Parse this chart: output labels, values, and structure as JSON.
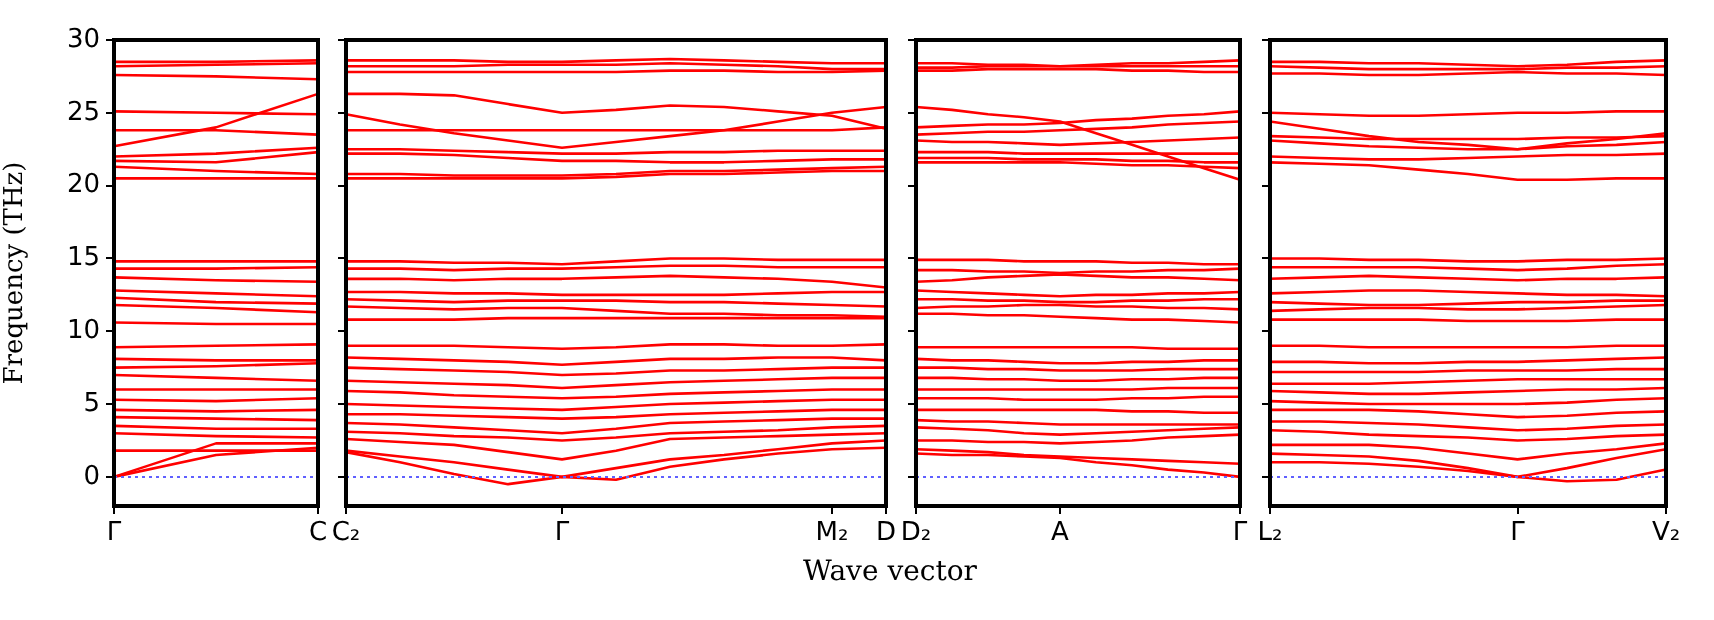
{
  "chart_data": [
    {
      "type": "line",
      "ylabel": "Frequency (THz)",
      "categories": [
        "Γ",
        null,
        "C"
      ],
      "ylim": [
        -2,
        30
      ],
      "yticks": [
        0,
        5,
        10,
        15,
        20,
        25,
        30
      ],
      "grid": false,
      "legend": false,
      "marker": "none",
      "line_style": "solid",
      "ref_lines": [
        {
          "axis": "y",
          "value": 0,
          "color": "#6060ff",
          "line_style": "dotted"
        }
      ],
      "series": [
        {
          "color": "#ff0000",
          "values": [
            28.5,
            28.5,
            28.6
          ]
        },
        {
          "color": "#ff0000",
          "values": [
            28.2,
            28.3,
            28.4
          ]
        },
        {
          "color": "#ff0000",
          "values": [
            27.6,
            27.5,
            27.3
          ]
        },
        {
          "color": "#ff0000",
          "values": [
            25.1,
            25.0,
            24.9
          ]
        },
        {
          "color": "#ff0000",
          "values": [
            22.7,
            24.0,
            26.3
          ]
        },
        {
          "color": "#ff0000",
          "values": [
            23.8,
            23.8,
            23.5
          ]
        },
        {
          "color": "#ff0000",
          "values": [
            22.0,
            22.2,
            22.6
          ]
        },
        {
          "color": "#ff0000",
          "values": [
            21.7,
            21.6,
            22.3
          ]
        },
        {
          "color": "#ff0000",
          "values": [
            21.3,
            21.0,
            20.8
          ]
        },
        {
          "color": "#ff0000",
          "values": [
            20.5,
            20.5,
            20.5
          ]
        },
        {
          "color": "#ff0000",
          "values": [
            14.8,
            14.8,
            14.8
          ]
        },
        {
          "color": "#ff0000",
          "values": [
            14.3,
            14.3,
            14.4
          ]
        },
        {
          "color": "#ff0000",
          "values": [
            13.7,
            13.5,
            13.4
          ]
        },
        {
          "color": "#ff0000",
          "values": [
            12.8,
            12.6,
            12.4
          ]
        },
        {
          "color": "#ff0000",
          "values": [
            12.3,
            12.0,
            11.9
          ]
        },
        {
          "color": "#ff0000",
          "values": [
            11.8,
            11.6,
            11.3
          ]
        },
        {
          "color": "#ff0000",
          "values": [
            10.6,
            10.5,
            10.5
          ]
        },
        {
          "color": "#ff0000",
          "values": [
            8.9,
            9.0,
            9.1
          ]
        },
        {
          "color": "#ff0000",
          "values": [
            8.1,
            8.0,
            8.0
          ]
        },
        {
          "color": "#ff0000",
          "values": [
            7.5,
            7.6,
            7.8
          ]
        },
        {
          "color": "#ff0000",
          "values": [
            7.0,
            6.8,
            6.6
          ]
        },
        {
          "color": "#ff0000",
          "values": [
            6.0,
            6.0,
            6.0
          ]
        },
        {
          "color": "#ff0000",
          "values": [
            5.3,
            5.2,
            5.4
          ]
        },
        {
          "color": "#ff0000",
          "values": [
            4.6,
            4.5,
            4.6
          ]
        },
        {
          "color": "#ff0000",
          "values": [
            4.1,
            4.0,
            3.9
          ]
        },
        {
          "color": "#ff0000",
          "values": [
            3.5,
            3.3,
            3.3
          ]
        },
        {
          "color": "#ff0000",
          "values": [
            3.0,
            2.8,
            2.7
          ]
        },
        {
          "color": "#ff0000",
          "values": [
            1.8,
            1.8,
            1.8
          ]
        },
        {
          "color": "#ff0000",
          "values": [
            0,
            2.3,
            2.3
          ]
        },
        {
          "color": "#ff0000",
          "values": [
            0,
            1.5,
            2.0
          ]
        }
      ]
    },
    {
      "type": "line",
      "xlabel": "Wave vector",
      "categories": [
        "C₂",
        null,
        null,
        null,
        "Γ",
        null,
        null,
        null,
        null,
        "M₂",
        "D"
      ],
      "ylim": [
        -2,
        30
      ],
      "yticks": [
        0,
        5,
        10,
        15,
        20,
        25,
        30
      ],
      "tick_labels": "x",
      "grid": false,
      "legend": false,
      "marker": "none",
      "line_style": "solid",
      "ref_lines": [
        {
          "axis": "y",
          "value": 0,
          "color": "#6060ff",
          "line_style": "dotted"
        }
      ],
      "series": [
        {
          "color": "#ff0000",
          "values": [
            28.6,
            28.6,
            28.6,
            28.5,
            28.5,
            28.6,
            28.7,
            28.6,
            28.5,
            28.4,
            28.4
          ]
        },
        {
          "color": "#ff0000",
          "values": [
            28.2,
            28.2,
            28.2,
            28.3,
            28.3,
            28.3,
            28.4,
            28.3,
            28.2,
            28.0,
            28.0
          ]
        },
        {
          "color": "#ff0000",
          "values": [
            27.8,
            27.8,
            27.8,
            27.8,
            27.8,
            27.8,
            27.9,
            27.9,
            27.8,
            27.8,
            27.9
          ]
        },
        {
          "color": "#ff0000",
          "values": [
            26.3,
            26.3,
            26.2,
            25.6,
            25.0,
            25.2,
            25.5,
            25.4,
            25.1,
            24.8,
            23.9
          ]
        },
        {
          "color": "#ff0000",
          "values": [
            24.9,
            24.2,
            23.6,
            23.1,
            22.6,
            23.0,
            23.4,
            23.8,
            24.4,
            25.0,
            25.4
          ]
        },
        {
          "color": "#ff0000",
          "values": [
            23.8,
            23.8,
            23.8,
            23.8,
            23.8,
            23.8,
            23.8,
            23.8,
            23.8,
            23.8,
            24.0
          ]
        },
        {
          "color": "#ff0000",
          "values": [
            22.5,
            22.5,
            22.4,
            22.3,
            22.2,
            22.2,
            22.3,
            22.3,
            22.4,
            22.4,
            22.4
          ]
        },
        {
          "color": "#ff0000",
          "values": [
            22.2,
            22.2,
            22.1,
            21.9,
            21.7,
            21.7,
            21.6,
            21.6,
            21.7,
            21.8,
            21.8
          ]
        },
        {
          "color": "#ff0000",
          "values": [
            20.8,
            20.8,
            20.7,
            20.7,
            20.7,
            20.8,
            21.0,
            21.0,
            21.1,
            21.2,
            21.3
          ]
        },
        {
          "color": "#ff0000",
          "values": [
            20.5,
            20.5,
            20.5,
            20.5,
            20.5,
            20.6,
            20.8,
            20.8,
            20.9,
            21.0,
            21.0
          ]
        },
        {
          "color": "#ff0000",
          "values": [
            14.8,
            14.8,
            14.7,
            14.7,
            14.6,
            14.8,
            15.0,
            15.0,
            14.9,
            14.9,
            14.9
          ]
        },
        {
          "color": "#ff0000",
          "values": [
            14.3,
            14.3,
            14.2,
            14.3,
            14.3,
            14.4,
            14.5,
            14.5,
            14.4,
            14.4,
            14.4
          ]
        },
        {
          "color": "#ff0000",
          "values": [
            13.6,
            13.6,
            13.5,
            13.6,
            13.6,
            13.7,
            13.8,
            13.7,
            13.6,
            13.4,
            13.0
          ]
        },
        {
          "color": "#ff0000",
          "values": [
            12.7,
            12.7,
            12.6,
            12.6,
            12.5,
            12.5,
            12.5,
            12.5,
            12.6,
            12.7,
            12.7
          ]
        },
        {
          "color": "#ff0000",
          "values": [
            12.2,
            12.1,
            12.0,
            12.1,
            12.1,
            12.1,
            12.0,
            12.0,
            11.9,
            11.8,
            11.7
          ]
        },
        {
          "color": "#ff0000",
          "values": [
            11.7,
            11.6,
            11.5,
            11.6,
            11.6,
            11.4,
            11.2,
            11.2,
            11.1,
            11.1,
            11.0
          ]
        },
        {
          "color": "#ff0000",
          "values": [
            10.8,
            10.8,
            10.8,
            10.9,
            10.9,
            10.9,
            10.9,
            10.9,
            10.9,
            10.9,
            10.9
          ]
        },
        {
          "color": "#ff0000",
          "values": [
            9.0,
            9.0,
            9.0,
            8.9,
            8.8,
            8.9,
            9.1,
            9.1,
            9.0,
            9.0,
            9.1
          ]
        },
        {
          "color": "#ff0000",
          "values": [
            8.2,
            8.1,
            8.0,
            7.9,
            7.7,
            7.9,
            8.1,
            8.1,
            8.2,
            8.2,
            8.0
          ]
        },
        {
          "color": "#ff0000",
          "values": [
            7.5,
            7.4,
            7.3,
            7.2,
            7.0,
            7.1,
            7.3,
            7.3,
            7.4,
            7.5,
            7.5
          ]
        },
        {
          "color": "#ff0000",
          "values": [
            6.6,
            6.5,
            6.4,
            6.3,
            6.1,
            6.3,
            6.5,
            6.6,
            6.7,
            6.8,
            6.8
          ]
        },
        {
          "color": "#ff0000",
          "values": [
            5.9,
            5.8,
            5.6,
            5.5,
            5.4,
            5.5,
            5.7,
            5.8,
            5.9,
            6.0,
            6.0
          ]
        },
        {
          "color": "#ff0000",
          "values": [
            5.0,
            4.9,
            4.8,
            4.7,
            4.6,
            4.8,
            5.0,
            5.1,
            5.2,
            5.3,
            5.3
          ]
        },
        {
          "color": "#ff0000",
          "values": [
            4.3,
            4.3,
            4.2,
            4.1,
            4.0,
            4.1,
            4.3,
            4.4,
            4.5,
            4.6,
            4.6
          ]
        },
        {
          "color": "#ff0000",
          "values": [
            3.7,
            3.6,
            3.4,
            3.2,
            3.0,
            3.3,
            3.7,
            3.8,
            3.9,
            4.0,
            4.0
          ]
        },
        {
          "color": "#ff0000",
          "values": [
            3.1,
            3.0,
            2.8,
            2.7,
            2.5,
            2.7,
            3.0,
            3.1,
            3.2,
            3.4,
            3.5
          ]
        },
        {
          "color": "#ff0000",
          "values": [
            2.6,
            2.4,
            2.2,
            1.7,
            1.2,
            1.8,
            2.6,
            2.7,
            2.8,
            2.9,
            3.0
          ]
        },
        {
          "color": "#ff0000",
          "values": [
            1.8,
            1.4,
            1.0,
            0.5,
            0,
            0.6,
            1.2,
            1.5,
            1.9,
            2.3,
            2.5
          ]
        },
        {
          "color": "#ff0000",
          "values": [
            1.7,
            1.0,
            0.2,
            -0.5,
            0,
            -0.2,
            0.7,
            1.2,
            1.6,
            1.9,
            2.0
          ]
        }
      ]
    },
    {
      "type": "line",
      "categories": [
        "D₂",
        null,
        null,
        null,
        "A",
        null,
        null,
        null,
        null,
        "Γ"
      ],
      "ylim": [
        -2,
        30
      ],
      "yticks": [
        0,
        5,
        10,
        15,
        20,
        25,
        30
      ],
      "tick_labels": "x",
      "grid": false,
      "legend": false,
      "marker": "none",
      "line_style": "solid",
      "ref_lines": [
        {
          "axis": "y",
          "value": 0,
          "color": "#6060ff",
          "line_style": "dotted"
        }
      ],
      "series": [
        {
          "color": "#ff0000",
          "values": [
            28.4,
            28.4,
            28.3,
            28.3,
            28.2,
            28.3,
            28.4,
            28.4,
            28.5,
            28.6
          ]
        },
        {
          "color": "#ff0000",
          "values": [
            28.1,
            28.1,
            28.2,
            28.2,
            28.2,
            28.2,
            28.2,
            28.2,
            28.2,
            28.2
          ]
        },
        {
          "color": "#ff0000",
          "values": [
            27.9,
            27.9,
            28.0,
            28.0,
            28.0,
            28.0,
            27.9,
            27.9,
            27.8,
            27.8
          ]
        },
        {
          "color": "#ff0000",
          "values": [
            25.4,
            25.2,
            24.9,
            24.7,
            24.4,
            23.6,
            22.8,
            22.0,
            21.2,
            20.4
          ]
        },
        {
          "color": "#ff0000",
          "values": [
            24.0,
            24.1,
            24.2,
            24.2,
            24.3,
            24.5,
            24.6,
            24.8,
            24.9,
            25.1
          ]
        },
        {
          "color": "#ff0000",
          "values": [
            23.5,
            23.6,
            23.7,
            23.7,
            23.8,
            23.9,
            24.0,
            24.2,
            24.3,
            24.4
          ]
        },
        {
          "color": "#ff0000",
          "values": [
            23.1,
            23.0,
            23.0,
            22.9,
            22.8,
            22.9,
            23.0,
            23.1,
            23.2,
            23.3
          ]
        },
        {
          "color": "#ff0000",
          "values": [
            22.3,
            22.3,
            22.3,
            22.2,
            22.2,
            22.2,
            22.2,
            22.2,
            22.2,
            22.2
          ]
        },
        {
          "color": "#ff0000",
          "values": [
            21.9,
            21.9,
            21.9,
            21.8,
            21.8,
            21.8,
            21.7,
            21.7,
            21.6,
            21.6
          ]
        },
        {
          "color": "#ff0000",
          "values": [
            21.6,
            21.6,
            21.6,
            21.6,
            21.6,
            21.5,
            21.4,
            21.4,
            21.3,
            21.2
          ]
        },
        {
          "color": "#ff0000",
          "values": [
            14.9,
            14.9,
            14.9,
            14.8,
            14.8,
            14.8,
            14.7,
            14.7,
            14.6,
            14.6
          ]
        },
        {
          "color": "#ff0000",
          "values": [
            14.2,
            14.2,
            14.1,
            14.1,
            14.0,
            14.1,
            14.1,
            14.2,
            14.2,
            14.3
          ]
        },
        {
          "color": "#ff0000",
          "values": [
            13.4,
            13.5,
            13.7,
            13.8,
            13.9,
            13.8,
            13.7,
            13.7,
            13.6,
            13.5
          ]
        },
        {
          "color": "#ff0000",
          "values": [
            12.8,
            12.7,
            12.6,
            12.5,
            12.4,
            12.5,
            12.5,
            12.6,
            12.6,
            12.7
          ]
        },
        {
          "color": "#ff0000",
          "values": [
            12.2,
            12.2,
            12.1,
            12.1,
            12.0,
            12.0,
            12.1,
            12.1,
            12.2,
            12.2
          ]
        },
        {
          "color": "#ff0000",
          "values": [
            11.6,
            11.7,
            11.7,
            11.8,
            11.8,
            11.7,
            11.7,
            11.6,
            11.6,
            11.5
          ]
        },
        {
          "color": "#ff0000",
          "values": [
            11.2,
            11.2,
            11.1,
            11.1,
            11.0,
            10.9,
            10.8,
            10.8,
            10.7,
            10.6
          ]
        },
        {
          "color": "#ff0000",
          "values": [
            8.9,
            8.9,
            8.9,
            8.9,
            8.9,
            8.9,
            8.9,
            8.8,
            8.8,
            8.8
          ]
        },
        {
          "color": "#ff0000",
          "values": [
            8.1,
            8.0,
            8.0,
            7.9,
            7.8,
            7.8,
            7.9,
            7.9,
            8.0,
            8.0
          ]
        },
        {
          "color": "#ff0000",
          "values": [
            7.5,
            7.5,
            7.4,
            7.4,
            7.3,
            7.3,
            7.3,
            7.4,
            7.4,
            7.4
          ]
        },
        {
          "color": "#ff0000",
          "values": [
            6.8,
            6.8,
            6.7,
            6.7,
            6.6,
            6.6,
            6.7,
            6.7,
            6.8,
            6.8
          ]
        },
        {
          "color": "#ff0000",
          "values": [
            6.0,
            6.0,
            6.0,
            6.0,
            6.0,
            6.0,
            6.0,
            6.1,
            6.1,
            6.1
          ]
        },
        {
          "color": "#ff0000",
          "values": [
            5.4,
            5.4,
            5.4,
            5.3,
            5.3,
            5.3,
            5.4,
            5.4,
            5.5,
            5.5
          ]
        },
        {
          "color": "#ff0000",
          "values": [
            4.6,
            4.6,
            4.6,
            4.6,
            4.6,
            4.6,
            4.5,
            4.5,
            4.4,
            4.4
          ]
        },
        {
          "color": "#ff0000",
          "values": [
            3.9,
            3.8,
            3.8,
            3.7,
            3.6,
            3.6,
            3.6,
            3.6,
            3.6,
            3.6
          ]
        },
        {
          "color": "#ff0000",
          "values": [
            3.4,
            3.3,
            3.2,
            3.0,
            2.9,
            3.0,
            3.1,
            3.2,
            3.3,
            3.4
          ]
        },
        {
          "color": "#ff0000",
          "values": [
            2.5,
            2.5,
            2.4,
            2.4,
            2.3,
            2.4,
            2.5,
            2.7,
            2.8,
            2.9
          ]
        },
        {
          "color": "#ff0000",
          "values": [
            1.9,
            1.8,
            1.7,
            1.5,
            1.4,
            1.3,
            1.2,
            1.1,
            1.0,
            0.9
          ]
        },
        {
          "color": "#ff0000",
          "values": [
            1.6,
            1.5,
            1.5,
            1.4,
            1.3,
            1.0,
            0.8,
            0.5,
            0.3,
            0
          ]
        }
      ]
    },
    {
      "type": "line",
      "categories": [
        "L₂",
        null,
        null,
        null,
        null,
        "Γ",
        null,
        null,
        "V₂"
      ],
      "ylim": [
        -2,
        30
      ],
      "yticks": [
        0,
        5,
        10,
        15,
        20,
        25,
        30
      ],
      "tick_labels": "x",
      "grid": false,
      "legend": false,
      "marker": "none",
      "line_style": "solid",
      "ref_lines": [
        {
          "axis": "y",
          "value": 0,
          "color": "#6060ff",
          "line_style": "dotted"
        }
      ],
      "series": [
        {
          "color": "#ff0000",
          "values": [
            28.5,
            28.5,
            28.4,
            28.4,
            28.3,
            28.2,
            28.3,
            28.5,
            28.6
          ]
        },
        {
          "color": "#ff0000",
          "values": [
            28.2,
            28.1,
            28.0,
            28.0,
            28.0,
            28.0,
            28.1,
            28.1,
            28.2
          ]
        },
        {
          "color": "#ff0000",
          "values": [
            27.7,
            27.7,
            27.6,
            27.6,
            27.7,
            27.8,
            27.7,
            27.7,
            27.6
          ]
        },
        {
          "color": "#ff0000",
          "values": [
            25.0,
            24.9,
            24.8,
            24.8,
            24.9,
            25.0,
            25.0,
            25.1,
            25.1
          ]
        },
        {
          "color": "#ff0000",
          "values": [
            24.4,
            23.9,
            23.4,
            23.0,
            22.8,
            22.5,
            22.9,
            23.2,
            23.6
          ]
        },
        {
          "color": "#ff0000",
          "values": [
            23.4,
            23.3,
            23.2,
            23.2,
            23.2,
            23.2,
            23.3,
            23.3,
            23.4
          ]
        },
        {
          "color": "#ff0000",
          "values": [
            23.1,
            22.9,
            22.7,
            22.6,
            22.5,
            22.5,
            22.7,
            22.8,
            23.0
          ]
        },
        {
          "color": "#ff0000",
          "values": [
            22.0,
            21.9,
            21.8,
            21.8,
            21.9,
            22.0,
            22.1,
            22.1,
            22.2
          ]
        },
        {
          "color": "#ff0000",
          "values": [
            21.6,
            21.5,
            21.4,
            21.1,
            20.8,
            20.4,
            20.4,
            20.5,
            20.5
          ]
        },
        {
          "color": "#ff0000",
          "values": [
            15.0,
            15.0,
            14.9,
            14.9,
            14.8,
            14.8,
            14.9,
            14.9,
            15.0
          ]
        },
        {
          "color": "#ff0000",
          "values": [
            14.4,
            14.4,
            14.4,
            14.4,
            14.3,
            14.2,
            14.3,
            14.5,
            14.6
          ]
        },
        {
          "color": "#ff0000",
          "values": [
            13.6,
            13.7,
            13.8,
            13.7,
            13.6,
            13.5,
            13.6,
            13.6,
            13.7
          ]
        },
        {
          "color": "#ff0000",
          "values": [
            12.6,
            12.7,
            12.8,
            12.8,
            12.7,
            12.6,
            12.5,
            12.5,
            12.4
          ]
        },
        {
          "color": "#ff0000",
          "values": [
            12.0,
            11.9,
            11.8,
            11.8,
            11.9,
            12.0,
            12.0,
            12.1,
            12.1
          ]
        },
        {
          "color": "#ff0000",
          "values": [
            11.4,
            11.5,
            11.6,
            11.6,
            11.5,
            11.5,
            11.6,
            11.7,
            11.8
          ]
        },
        {
          "color": "#ff0000",
          "values": [
            10.8,
            10.8,
            10.8,
            10.8,
            10.7,
            10.7,
            10.7,
            10.8,
            10.8
          ]
        },
        {
          "color": "#ff0000",
          "values": [
            9.0,
            9.0,
            8.9,
            8.9,
            8.9,
            8.9,
            8.9,
            9.0,
            9.0
          ]
        },
        {
          "color": "#ff0000",
          "values": [
            7.9,
            7.9,
            7.8,
            7.8,
            7.9,
            7.9,
            8.0,
            8.1,
            8.2
          ]
        },
        {
          "color": "#ff0000",
          "values": [
            7.2,
            7.2,
            7.2,
            7.2,
            7.3,
            7.3,
            7.3,
            7.4,
            7.4
          ]
        },
        {
          "color": "#ff0000",
          "values": [
            6.4,
            6.4,
            6.4,
            6.5,
            6.6,
            6.7,
            6.7,
            6.7,
            6.7
          ]
        },
        {
          "color": "#ff0000",
          "values": [
            5.9,
            5.8,
            5.7,
            5.7,
            5.8,
            5.9,
            6.0,
            6.0,
            6.1
          ]
        },
        {
          "color": "#ff0000",
          "values": [
            5.2,
            5.1,
            5.0,
            5.0,
            5.0,
            5.0,
            5.1,
            5.3,
            5.4
          ]
        },
        {
          "color": "#ff0000",
          "values": [
            4.6,
            4.6,
            4.6,
            4.5,
            4.3,
            4.1,
            4.2,
            4.4,
            4.5
          ]
        },
        {
          "color": "#ff0000",
          "values": [
            3.8,
            3.8,
            3.7,
            3.6,
            3.4,
            3.2,
            3.3,
            3.5,
            3.6
          ]
        },
        {
          "color": "#ff0000",
          "values": [
            3.2,
            3.1,
            2.9,
            2.8,
            2.7,
            2.5,
            2.6,
            2.8,
            2.9
          ]
        },
        {
          "color": "#ff0000",
          "values": [
            2.2,
            2.2,
            2.2,
            2.0,
            1.6,
            1.2,
            1.6,
            1.9,
            2.3
          ]
        },
        {
          "color": "#ff0000",
          "values": [
            1.6,
            1.5,
            1.4,
            1.1,
            0.6,
            0,
            0.6,
            1.3,
            1.9
          ]
        },
        {
          "color": "#ff0000",
          "values": [
            1.0,
            1.0,
            0.9,
            0.7,
            0.4,
            0,
            -0.3,
            -0.2,
            0.5
          ]
        }
      ]
    }
  ]
}
